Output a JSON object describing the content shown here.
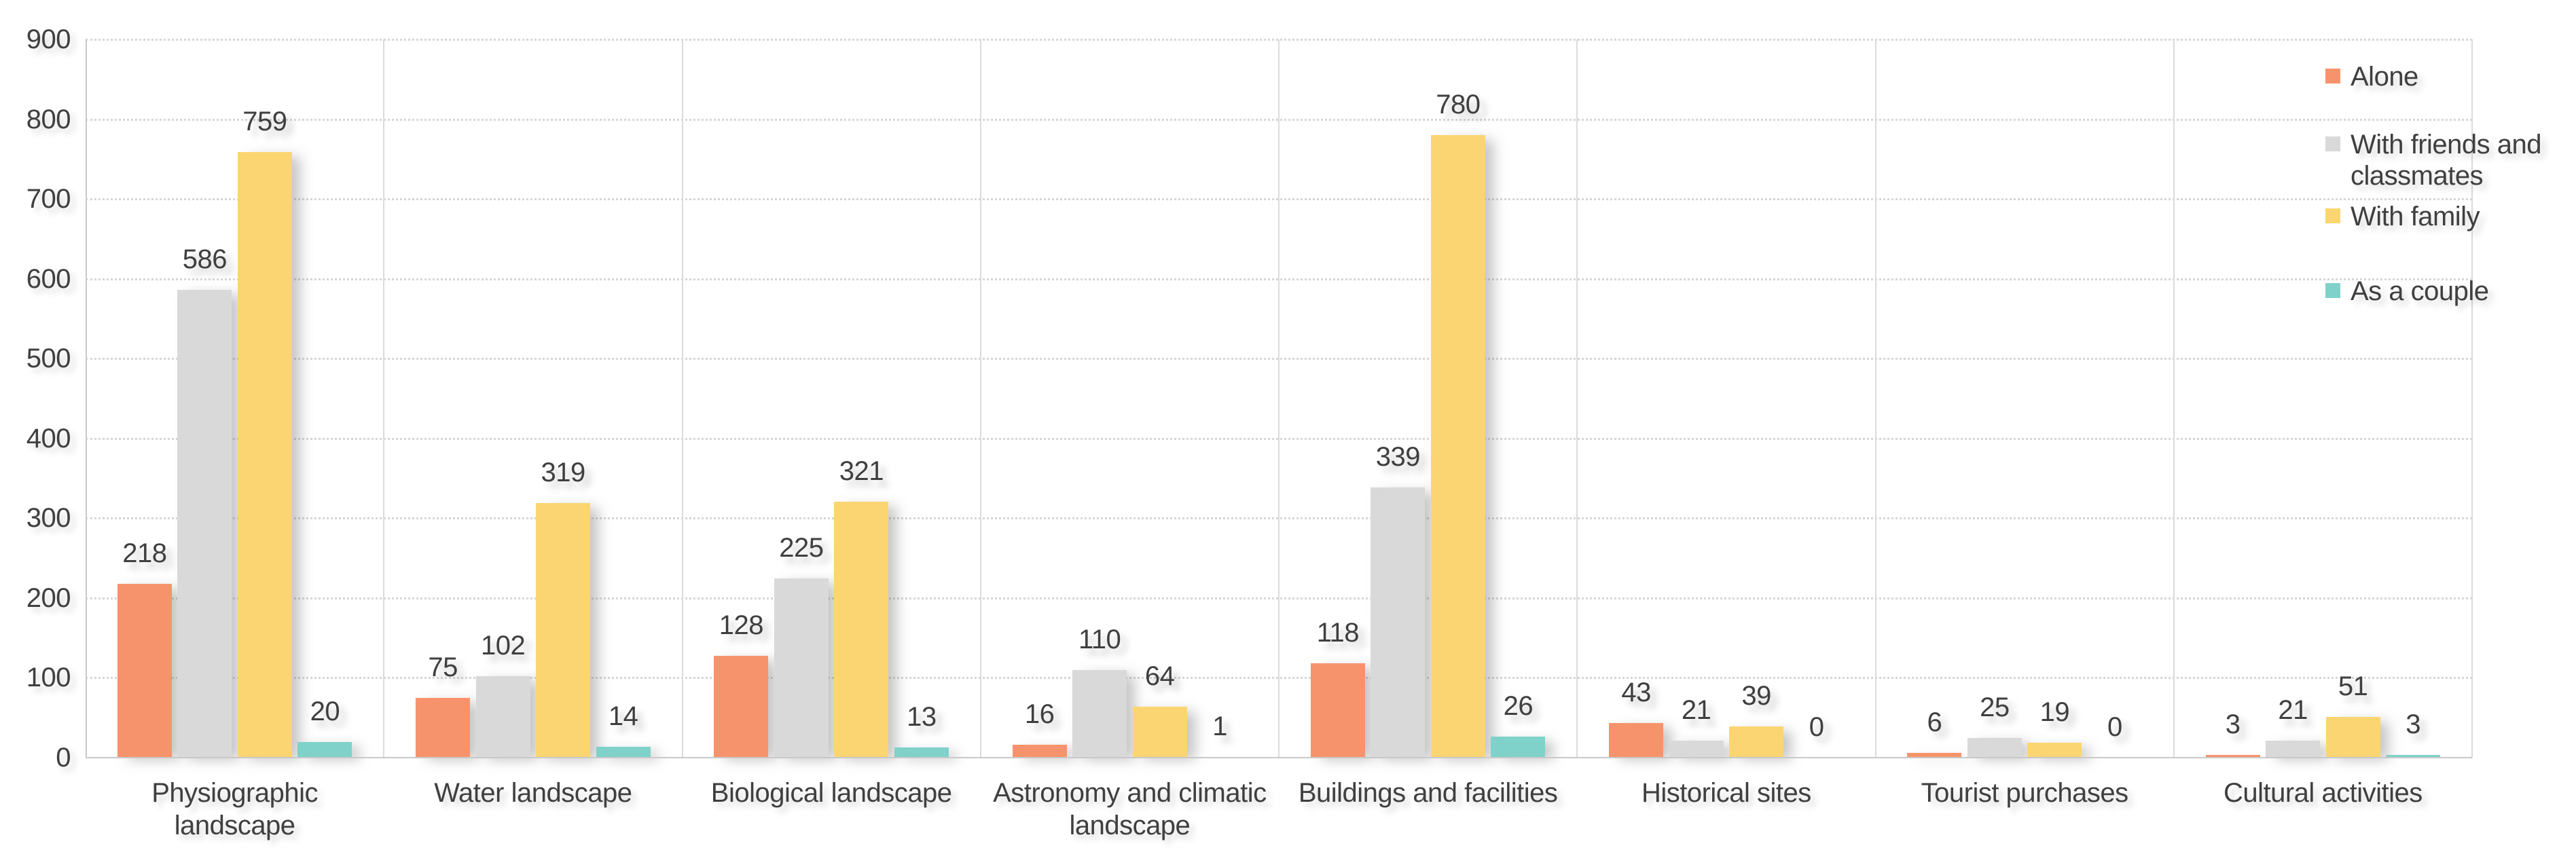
{
  "chart_data": {
    "type": "bar",
    "title": "",
    "categories": [
      "Physiographic landscape",
      "Water landscape",
      "Biological landscape",
      "Astronomy and climatic landscape",
      "Buildings and facilities",
      "Historical sites",
      "Tourist purchases",
      "Cultural activities"
    ],
    "category_label_lines": [
      [
        "Physiographic",
        "landscape"
      ],
      [
        "Water landscape"
      ],
      [
        "Biological landscape"
      ],
      [
        "Astronomy and climatic",
        "landscape"
      ],
      [
        "Buildings and facilities"
      ],
      [
        "Historical sites"
      ],
      [
        "Tourist purchases"
      ],
      [
        "Cultural activities"
      ]
    ],
    "series": [
      {
        "name": "Alone",
        "color": "#F7936C",
        "values": [
          218,
          75,
          128,
          16,
          118,
          43,
          6,
          3
        ]
      },
      {
        "name": "With friends and classmates",
        "color": "#D9D9D9",
        "values": [
          586,
          102,
          225,
          110,
          339,
          21,
          25,
          21
        ]
      },
      {
        "name": "With family",
        "color": "#FBD572",
        "values": [
          759,
          319,
          321,
          64,
          780,
          39,
          19,
          51
        ]
      },
      {
        "name": "As a couple",
        "color": "#7FD2CA",
        "values": [
          20,
          14,
          13,
          1,
          26,
          0,
          0,
          3
        ]
      }
    ],
    "legend_label_lines": [
      [
        "Alone"
      ],
      [
        "With friends and",
        "classmates"
      ],
      [
        "With family"
      ],
      [
        "As a couple"
      ]
    ],
    "xlabel": "",
    "ylabel": "",
    "ylim": [
      0,
      900
    ],
    "yticks": [
      0,
      100,
      200,
      300,
      400,
      500,
      600,
      700,
      800,
      900
    ],
    "grid": "horizontal-dotted",
    "legend_position": "top-right",
    "value_labels": "above-bars"
  },
  "colors": {
    "text": "#3F3F3F",
    "axis_line": "#C9C9C9",
    "separator_line": "#DBDBDB",
    "gridline": "#D6D6D6",
    "background": "#FFFFFF"
  }
}
